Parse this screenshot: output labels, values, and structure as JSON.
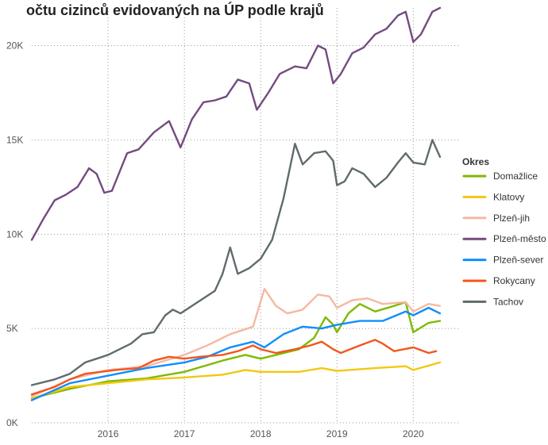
{
  "chart_data": {
    "type": "line",
    "title": "očtu cizinců evidovaných na ÚP podle krajů",
    "xlabel": "",
    "ylabel": "",
    "x_ticks": [
      "2016",
      "2017",
      "2018",
      "2019",
      "2020"
    ],
    "y_ticks": [
      "0K",
      "5K",
      "10K",
      "15K",
      "20K"
    ],
    "x_range": [
      2015.0,
      2020.6
    ],
    "ylim": [
      0,
      22000
    ],
    "grid": true,
    "legend": {
      "title": "Okres",
      "placement": "right"
    },
    "series": [
      {
        "name": "Domažlice",
        "color": "#7fba00",
        "x": [
          2015.0,
          2015.5,
          2016.0,
          2016.5,
          2017.0,
          2017.5,
          2017.8,
          2018.0,
          2018.5,
          2018.7,
          2018.85,
          2018.95,
          2019.0,
          2019.15,
          2019.3,
          2019.5,
          2019.75,
          2019.9,
          2020.0,
          2020.2,
          2020.35
        ],
        "y": [
          1300,
          1800,
          2200,
          2350,
          2700,
          3300,
          3600,
          3400,
          3900,
          4500,
          5600,
          5200,
          4800,
          5800,
          6300,
          5900,
          6200,
          6400,
          4800,
          5300,
          5400
        ]
      },
      {
        "name": "Klatovy",
        "color": "#f2c811",
        "x": [
          2015.0,
          2015.5,
          2016.0,
          2016.5,
          2017.0,
          2017.5,
          2017.8,
          2018.0,
          2018.5,
          2018.8,
          2019.0,
          2019.5,
          2019.9,
          2020.0,
          2020.35
        ],
        "y": [
          1300,
          1900,
          2100,
          2300,
          2400,
          2550,
          2800,
          2700,
          2700,
          2900,
          2750,
          2900,
          3000,
          2800,
          3200
        ]
      },
      {
        "name": "Plzeň-jih",
        "color": "#f4b9a2",
        "x": [
          2015.0,
          2015.5,
          2016.0,
          2016.5,
          2017.0,
          2017.3,
          2017.6,
          2017.9,
          2018.05,
          2018.2,
          2018.35,
          2018.55,
          2018.75,
          2018.9,
          2019.0,
          2019.2,
          2019.4,
          2019.6,
          2019.9,
          2020.0,
          2020.2,
          2020.35
        ],
        "y": [
          1400,
          2300,
          2800,
          3000,
          3600,
          4100,
          4700,
          5100,
          7100,
          6200,
          5800,
          6000,
          6800,
          6700,
          6100,
          6500,
          6600,
          6300,
          6400,
          5900,
          6300,
          6200
        ]
      },
      {
        "name": "Plzeň-město",
        "color": "#744b7f",
        "x": [
          2015.0,
          2015.15,
          2015.3,
          2015.45,
          2015.6,
          2015.75,
          2015.85,
          2015.95,
          2016.05,
          2016.15,
          2016.25,
          2016.4,
          2016.6,
          2016.8,
          2016.95,
          2017.1,
          2017.25,
          2017.4,
          2017.55,
          2017.7,
          2017.85,
          2017.95,
          2018.1,
          2018.25,
          2018.45,
          2018.6,
          2018.75,
          2018.85,
          2018.95,
          2019.05,
          2019.2,
          2019.35,
          2019.5,
          2019.65,
          2019.8,
          2019.9,
          2020.0,
          2020.1,
          2020.25,
          2020.35
        ],
        "y": [
          9700,
          10800,
          11800,
          12100,
          12500,
          13500,
          13200,
          12200,
          12300,
          13300,
          14300,
          14500,
          15400,
          16000,
          14600,
          16100,
          17000,
          17100,
          17300,
          18200,
          18000,
          16600,
          17500,
          18500,
          18900,
          18800,
          20000,
          19800,
          18000,
          18500,
          19600,
          19900,
          20600,
          20900,
          21600,
          21800,
          20200,
          20600,
          21800,
          22000
        ]
      },
      {
        "name": "Plzeň-sever",
        "color": "#118dff",
        "x": [
          2015.0,
          2015.5,
          2016.0,
          2016.5,
          2017.0,
          2017.3,
          2017.6,
          2017.9,
          2018.05,
          2018.3,
          2018.55,
          2018.8,
          2019.0,
          2019.3,
          2019.6,
          2019.9,
          2020.0,
          2020.2,
          2020.35
        ],
        "y": [
          1200,
          2100,
          2500,
          2900,
          3200,
          3500,
          4000,
          4300,
          4000,
          4700,
          5100,
          5000,
          5200,
          5400,
          5400,
          5900,
          5700,
          6100,
          5800
        ]
      },
      {
        "name": "Rokycany",
        "color": "#f2561d",
        "x": [
          2015.0,
          2015.3,
          2015.5,
          2015.7,
          2015.9,
          2016.1,
          2016.4,
          2016.6,
          2016.8,
          2017.0,
          2017.2,
          2017.5,
          2017.7,
          2017.9,
          2018.0,
          2018.2,
          2018.45,
          2018.65,
          2018.8,
          2018.95,
          2019.05,
          2019.3,
          2019.5,
          2019.6,
          2019.75,
          2020.0,
          2020.2,
          2020.3
        ],
        "y": [
          1500,
          1900,
          2300,
          2600,
          2700,
          2800,
          2900,
          3300,
          3500,
          3400,
          3500,
          3600,
          3800,
          4100,
          3900,
          3700,
          3900,
          4100,
          4300,
          3900,
          3700,
          4100,
          4400,
          4200,
          3800,
          4000,
          3700,
          3800
        ]
      },
      {
        "name": "Tachov",
        "color": "#5f6b6d",
        "x": [
          2015.0,
          2015.3,
          2015.5,
          2015.7,
          2015.85,
          2016.0,
          2016.15,
          2016.3,
          2016.45,
          2016.6,
          2016.75,
          2016.85,
          2016.95,
          2017.1,
          2017.25,
          2017.4,
          2017.5,
          2017.6,
          2017.7,
          2017.85,
          2018.0,
          2018.15,
          2018.3,
          2018.45,
          2018.55,
          2018.7,
          2018.85,
          2018.95,
          2019.0,
          2019.1,
          2019.2,
          2019.35,
          2019.5,
          2019.65,
          2019.8,
          2019.9,
          2020.0,
          2020.15,
          2020.25,
          2020.35
        ],
        "y": [
          2000,
          2300,
          2600,
          3200,
          3400,
          3600,
          3900,
          4200,
          4700,
          4800,
          5700,
          6000,
          5800,
          6200,
          6600,
          7000,
          7900,
          9300,
          7900,
          8200,
          8700,
          9700,
          11900,
          14800,
          13700,
          14300,
          14400,
          13900,
          12600,
          12800,
          13500,
          13200,
          12500,
          13000,
          13800,
          14300,
          13800,
          13700,
          15000,
          14100
        ]
      }
    ]
  }
}
